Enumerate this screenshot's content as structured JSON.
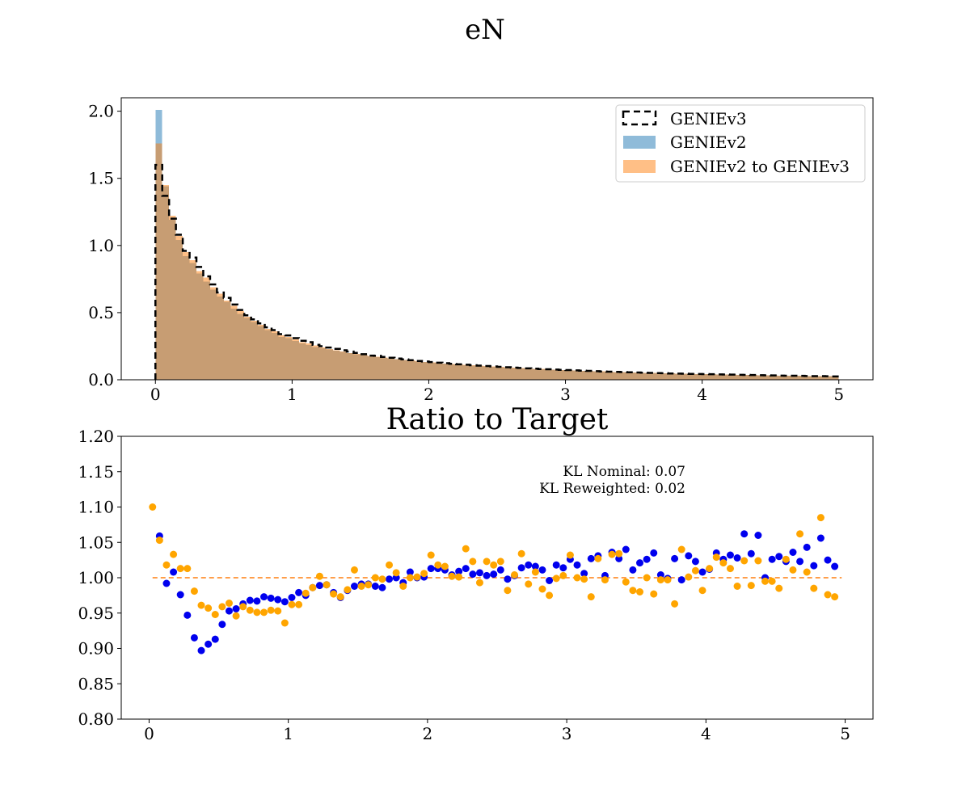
{
  "figure": {
    "suptitle": "eN"
  },
  "colors": {
    "target_line": "#000000",
    "nominal_fill": "#1f77b4",
    "reweighted_fill": "#ff7f0e",
    "nominal_points": "#0000ee",
    "reweighted_points": "#ffa500",
    "unity_line": "#ff7f0e"
  },
  "chart_data": [
    {
      "type": "bar",
      "title": "",
      "xlabel": "",
      "ylabel": "",
      "xlim": [
        -0.25,
        5.25
      ],
      "ylim": [
        0,
        2.1
      ],
      "xticks": [
        "0",
        "1",
        "2",
        "3",
        "4",
        "5"
      ],
      "yticks": [
        "0.0",
        "0.5",
        "1.0",
        "1.5",
        "2.0"
      ],
      "bin_edges_range": [
        0.0,
        5.0
      ],
      "legend_position": "top-right",
      "series": [
        {
          "name": "GENIEv3",
          "style": "step-dashed",
          "values": [
            1.6,
            1.37,
            1.2,
            1.08,
            0.96,
            0.91,
            0.84,
            0.77,
            0.71,
            0.65,
            0.61,
            0.56,
            0.52,
            0.48,
            0.45,
            0.42,
            0.39,
            0.37,
            0.34,
            0.33,
            0.31,
            0.29,
            0.28,
            0.26,
            0.25,
            0.24,
            0.23,
            0.22,
            0.21,
            0.2,
            0.19,
            0.18,
            0.178,
            0.17,
            0.164,
            0.158,
            0.152,
            0.146,
            0.14,
            0.136,
            0.132,
            0.127,
            0.123,
            0.119,
            0.115,
            0.112,
            0.108,
            0.105,
            0.102,
            0.099,
            0.096,
            0.093,
            0.09,
            0.088,
            0.085,
            0.083,
            0.08,
            0.078,
            0.076,
            0.074,
            0.072,
            0.07,
            0.068,
            0.066,
            0.064,
            0.062,
            0.06,
            0.059,
            0.057,
            0.056,
            0.054,
            0.053,
            0.051,
            0.05,
            0.049,
            0.047,
            0.046,
            0.045,
            0.044,
            0.043,
            0.042,
            0.041,
            0.04,
            0.039,
            0.038,
            0.037,
            0.036,
            0.035,
            0.034,
            0.033,
            0.032,
            0.031,
            0.03,
            0.03,
            0.029,
            0.028,
            0.027,
            0.027,
            0.026,
            0.025
          ]
        },
        {
          "name": "GENIEv2",
          "style": "filled",
          "values": [
            2.01,
            1.44,
            1.19,
            1.04,
            0.92,
            0.87,
            0.79,
            0.73,
            0.67,
            0.62,
            0.58,
            0.53,
            0.49,
            0.46,
            0.43,
            0.4,
            0.37,
            0.35,
            0.32,
            0.31,
            0.29,
            0.27,
            0.26,
            0.245,
            0.235,
            0.225,
            0.216,
            0.207,
            0.199,
            0.191,
            0.183,
            0.175,
            0.169,
            0.163,
            0.157,
            0.152,
            0.146,
            0.141,
            0.136,
            0.131,
            0.127,
            0.123,
            0.119,
            0.115,
            0.112,
            0.108,
            0.105,
            0.102,
            0.099,
            0.096,
            0.093,
            0.09,
            0.088,
            0.085,
            0.083,
            0.081,
            0.079,
            0.077,
            0.075,
            0.073,
            0.071,
            0.069,
            0.067,
            0.065,
            0.063,
            0.061,
            0.06,
            0.058,
            0.057,
            0.055,
            0.054,
            0.052,
            0.051,
            0.05,
            0.049,
            0.047,
            0.046,
            0.045,
            0.044,
            0.043,
            0.042,
            0.041,
            0.04,
            0.039,
            0.038,
            0.037,
            0.036,
            0.035,
            0.034,
            0.033,
            0.032,
            0.031,
            0.031,
            0.03,
            0.029,
            0.028,
            0.027,
            0.027,
            0.026,
            0.025
          ]
        },
        {
          "name": "GENIEv2 to GENIEv3",
          "style": "filled",
          "values": [
            1.76,
            1.45,
            1.22,
            1.07,
            0.95,
            0.89,
            0.81,
            0.76,
            0.69,
            0.64,
            0.59,
            0.55,
            0.51,
            0.47,
            0.44,
            0.41,
            0.38,
            0.36,
            0.33,
            0.32,
            0.3,
            0.28,
            0.27,
            0.255,
            0.24,
            0.23,
            0.22,
            0.21,
            0.2,
            0.194,
            0.186,
            0.178,
            0.172,
            0.166,
            0.16,
            0.154,
            0.148,
            0.143,
            0.138,
            0.133,
            0.129,
            0.125,
            0.121,
            0.117,
            0.114,
            0.11,
            0.107,
            0.104,
            0.101,
            0.098,
            0.095,
            0.092,
            0.089,
            0.087,
            0.084,
            0.082,
            0.08,
            0.078,
            0.075,
            0.073,
            0.071,
            0.069,
            0.067,
            0.065,
            0.063,
            0.062,
            0.06,
            0.058,
            0.057,
            0.055,
            0.054,
            0.052,
            0.051,
            0.05,
            0.048,
            0.047,
            0.046,
            0.045,
            0.044,
            0.043,
            0.042,
            0.041,
            0.04,
            0.039,
            0.038,
            0.037,
            0.036,
            0.035,
            0.034,
            0.033,
            0.032,
            0.031,
            0.03,
            0.03,
            0.029,
            0.028,
            0.027,
            0.027,
            0.026,
            0.025
          ]
        }
      ]
    },
    {
      "type": "scatter",
      "title": "Ratio to Target",
      "xlabel": "",
      "ylabel": "",
      "xlim": [
        -0.2,
        5.2
      ],
      "ylim": [
        0.8,
        1.2
      ],
      "xticks": [
        "0",
        "1",
        "2",
        "3",
        "4",
        "5"
      ],
      "yticks": [
        "0.80",
        "0.85",
        "0.90",
        "0.95",
        "1.00",
        "1.05",
        "1.10",
        "1.15",
        "1.20"
      ],
      "reference_line": 1.0,
      "annotations": [
        "KL Nominal: 0.07",
        "KL Reweighted: 0.02"
      ],
      "x": [
        0.025,
        0.075,
        0.125,
        0.175,
        0.225,
        0.275,
        0.325,
        0.375,
        0.425,
        0.475,
        0.525,
        0.575,
        0.625,
        0.675,
        0.725,
        0.775,
        0.825,
        0.875,
        0.925,
        0.975,
        1.025,
        1.075,
        1.125,
        1.175,
        1.225,
        1.275,
        1.325,
        1.375,
        1.425,
        1.475,
        1.525,
        1.575,
        1.625,
        1.675,
        1.725,
        1.775,
        1.825,
        1.875,
        1.925,
        1.975,
        2.025,
        2.075,
        2.125,
        2.175,
        2.225,
        2.275,
        2.325,
        2.375,
        2.425,
        2.475,
        2.525,
        2.575,
        2.625,
        2.675,
        2.725,
        2.775,
        2.825,
        2.875,
        2.925,
        2.975,
        3.025,
        3.075,
        3.125,
        3.175,
        3.225,
        3.275,
        3.325,
        3.375,
        3.425,
        3.475,
        3.525,
        3.575,
        3.625,
        3.675,
        3.725,
        3.775,
        3.825,
        3.875,
        3.925,
        3.975,
        4.025,
        4.075,
        4.125,
        4.175,
        4.225,
        4.275,
        4.325,
        4.375,
        4.425,
        4.475,
        4.525,
        4.575,
        4.625,
        4.675,
        4.725,
        4.775,
        4.825,
        4.875,
        4.925,
        4.975
      ],
      "series": [
        {
          "name": "",
          "color_key": "nominal_points",
          "values": [
            null,
            1.059,
            0.992,
            1.008,
            0.976,
            0.947,
            0.915,
            0.897,
            0.906,
            0.913,
            0.934,
            0.953,
            0.956,
            0.963,
            0.968,
            0.967,
            0.973,
            0.971,
            0.969,
            0.966,
            0.972,
            0.979,
            0.975,
            0.986,
            0.989,
            0.99,
            0.979,
            0.972,
            0.982,
            0.988,
            0.991,
            0.991,
            0.988,
            0.986,
            0.998,
            1.0,
            0.993,
            1.008,
            1.0,
            1.001,
            1.013,
            1.013,
            1.011,
            1.004,
            1.009,
            1.013,
            1.005,
            1.007,
            1.003,
            1.005,
            1.011,
            0.998,
            1.003,
            1.014,
            1.018,
            1.016,
            1.011,
            0.996,
            1.018,
            1.014,
            1.026,
            1.018,
            1.006,
            1.027,
            1.031,
            1.003,
            1.036,
            1.027,
            1.04,
            1.011,
            1.021,
            1.026,
            1.035,
            1.004,
            0.999,
            1.027,
            0.997,
            1.031,
            1.023,
            1.008,
            1.012,
            1.035,
            1.026,
            1.032,
            1.028,
            1.062,
            1.034,
            1.06,
            1.0,
            1.026,
            1.03,
            1.023,
            1.036,
            1.023,
            1.043,
            1.017,
            1.056,
            1.025,
            1.016,
            null
          ]
        },
        {
          "name": "",
          "color_key": "reweighted_points",
          "values": [
            1.1,
            1.053,
            1.018,
            1.033,
            1.013,
            1.013,
            0.981,
            0.961,
            0.957,
            0.948,
            0.959,
            0.964,
            0.946,
            0.959,
            0.954,
            0.951,
            0.951,
            0.954,
            0.953,
            0.936,
            0.962,
            0.962,
            0.978,
            0.986,
            1.002,
            0.99,
            0.977,
            0.973,
            0.983,
            1.011,
            0.988,
            0.99,
            1.0,
            0.998,
            1.018,
            1.007,
            0.988,
            1.0,
            1.001,
            1.006,
            1.032,
            1.018,
            1.016,
            1.002,
            1.001,
            1.041,
            1.023,
            0.993,
            1.023,
            1.018,
            1.023,
            0.982,
            1.004,
            1.034,
            0.991,
            1.008,
            0.984,
            0.975,
            0.999,
            1.003,
            1.032,
            1.0,
            0.998,
            0.973,
            1.027,
            0.997,
            1.033,
            1.034,
            0.994,
            0.982,
            0.98,
            1.0,
            0.977,
            0.997,
            0.997,
            0.963,
            1.04,
            1.001,
            1.01,
            0.982,
            1.013,
            1.029,
            1.021,
            1.013,
            0.988,
            1.024,
            0.989,
            1.024,
            0.995,
            0.995,
            0.985,
            1.026,
            1.011,
            1.062,
            1.008,
            0.985,
            1.085,
            0.976,
            0.973,
            null
          ]
        }
      ]
    }
  ]
}
